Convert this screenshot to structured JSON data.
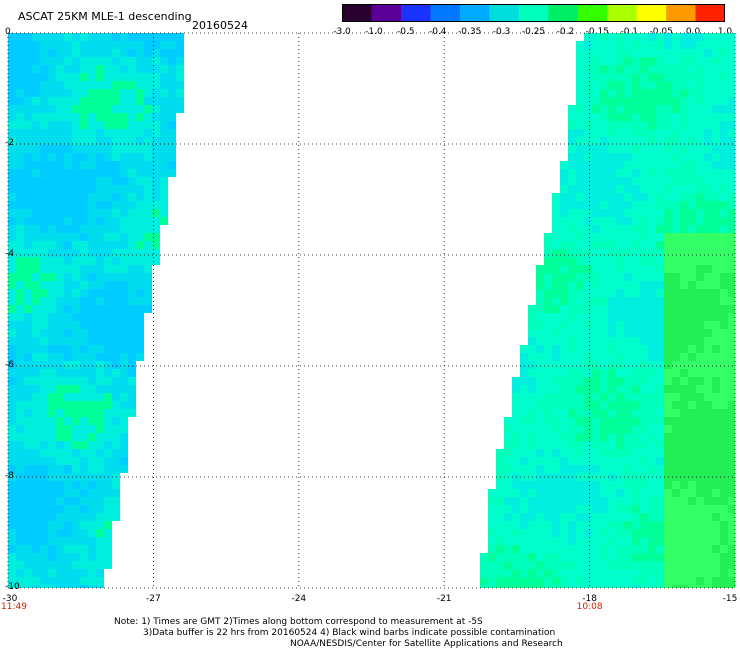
{
  "header": {
    "title": "ASCAT 25KM MLE-1 descending",
    "date": "20160524"
  },
  "colorbar": {
    "labels": [
      "-3.0",
      "-1.0",
      "-0.5",
      "-0.4",
      "-0.35",
      "-0.3",
      "-0.25",
      "-0.2",
      "-0.15",
      "-0.1",
      "-0.05",
      "0.0",
      "1.0"
    ],
    "colors": [
      "#2a0030",
      "#5a0099",
      "#1a33ff",
      "#0077ff",
      "#00aaff",
      "#00dddd",
      "#00ffbb",
      "#00ee66",
      "#33ff00",
      "#aaff00",
      "#ffff00",
      "#ff9900",
      "#ff2200"
    ]
  },
  "map": {
    "x_axis": {
      "range": [
        -30,
        -15
      ],
      "ticks": [
        "-30",
        "-27",
        "-24",
        "-21",
        "-18",
        "-15"
      ]
    },
    "y_axis": {
      "range": [
        -10,
        0
      ],
      "ticks": [
        "0",
        "-2",
        "-4",
        "-6",
        "-8",
        "-10"
      ]
    },
    "time_labels": [
      {
        "text": "11:49",
        "lon": -30
      },
      {
        "text": "10:08",
        "lon": -18
      }
    ],
    "swaths": [
      {
        "name": "west-swath",
        "lon_min": -30,
        "lat_edge": [
          [
            0,
            -26.4
          ],
          [
            -2,
            -26.6
          ],
          [
            -4,
            -27.0
          ],
          [
            -6,
            -27.4
          ],
          [
            -8,
            -27.7
          ],
          [
            -10,
            -28.1
          ]
        ]
      },
      {
        "name": "east-swath",
        "lon_max": -15,
        "lat_edge": [
          [
            0,
            -18.1
          ],
          [
            -2,
            -18.4
          ],
          [
            -4,
            -18.9
          ],
          [
            -6,
            -19.4
          ],
          [
            -8,
            -19.9
          ],
          [
            -10,
            -20.2
          ]
        ]
      }
    ],
    "grid": true
  },
  "footer": {
    "line1": "Note: 1) Times are GMT 2)Times along bottom correspond to measurement at -5S",
    "line2": "3)Data buffer is 22 hrs from 20160524 4) Black wind barbs indicate possible contamination",
    "line3": "NOAA/NESDIS/Center for Satellite Applications and Research"
  }
}
